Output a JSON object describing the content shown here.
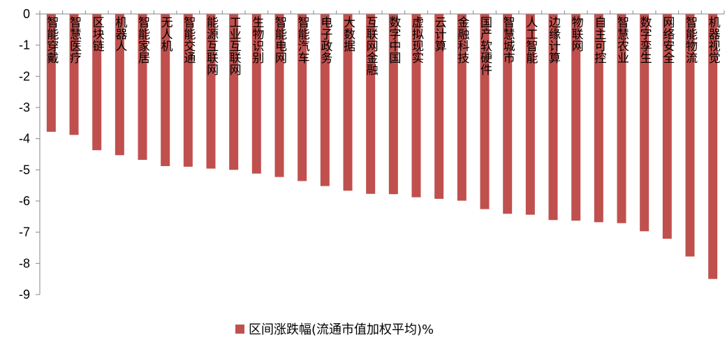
{
  "chart_data": {
    "type": "bar",
    "categories": [
      "智能穿戴",
      "智慧医疗",
      "区块链",
      "机器人",
      "智能家居",
      "无人机",
      "智能交通",
      "能源互联网",
      "工业互联网",
      "生物识别",
      "智能电网",
      "智能汽车",
      "电子政务",
      "大数据",
      "互联网金融",
      "数字中国",
      "虚拟现实",
      "云计算",
      "金融科技",
      "国产软硬件",
      "智慧城市",
      "人工智能",
      "边缘计算",
      "物联网",
      "自主可控",
      "智慧农业",
      "数字孪生",
      "网络安全",
      "智能物流",
      "机器视觉"
    ],
    "series": [
      {
        "name": "区间涨跌幅(流通市值加权平均)%",
        "color": "#C0504D",
        "values": [
          -3.78,
          -3.88,
          -4.37,
          -4.53,
          -4.68,
          -4.88,
          -4.9,
          -4.96,
          -5.0,
          -5.12,
          -5.23,
          -5.36,
          -5.52,
          -5.67,
          -5.77,
          -5.78,
          -5.88,
          -5.93,
          -5.99,
          -6.26,
          -6.41,
          -6.44,
          -6.61,
          -6.63,
          -6.68,
          -6.71,
          -6.97,
          -7.21,
          -7.78,
          -8.5
        ]
      }
    ],
    "y_ticks": [
      "0",
      "-1",
      "-2",
      "-3",
      "-4",
      "-5",
      "-6",
      "-7",
      "-8",
      "-9"
    ],
    "ylim": [
      -9,
      0
    ],
    "legend_position": "bottom",
    "grid": false
  }
}
